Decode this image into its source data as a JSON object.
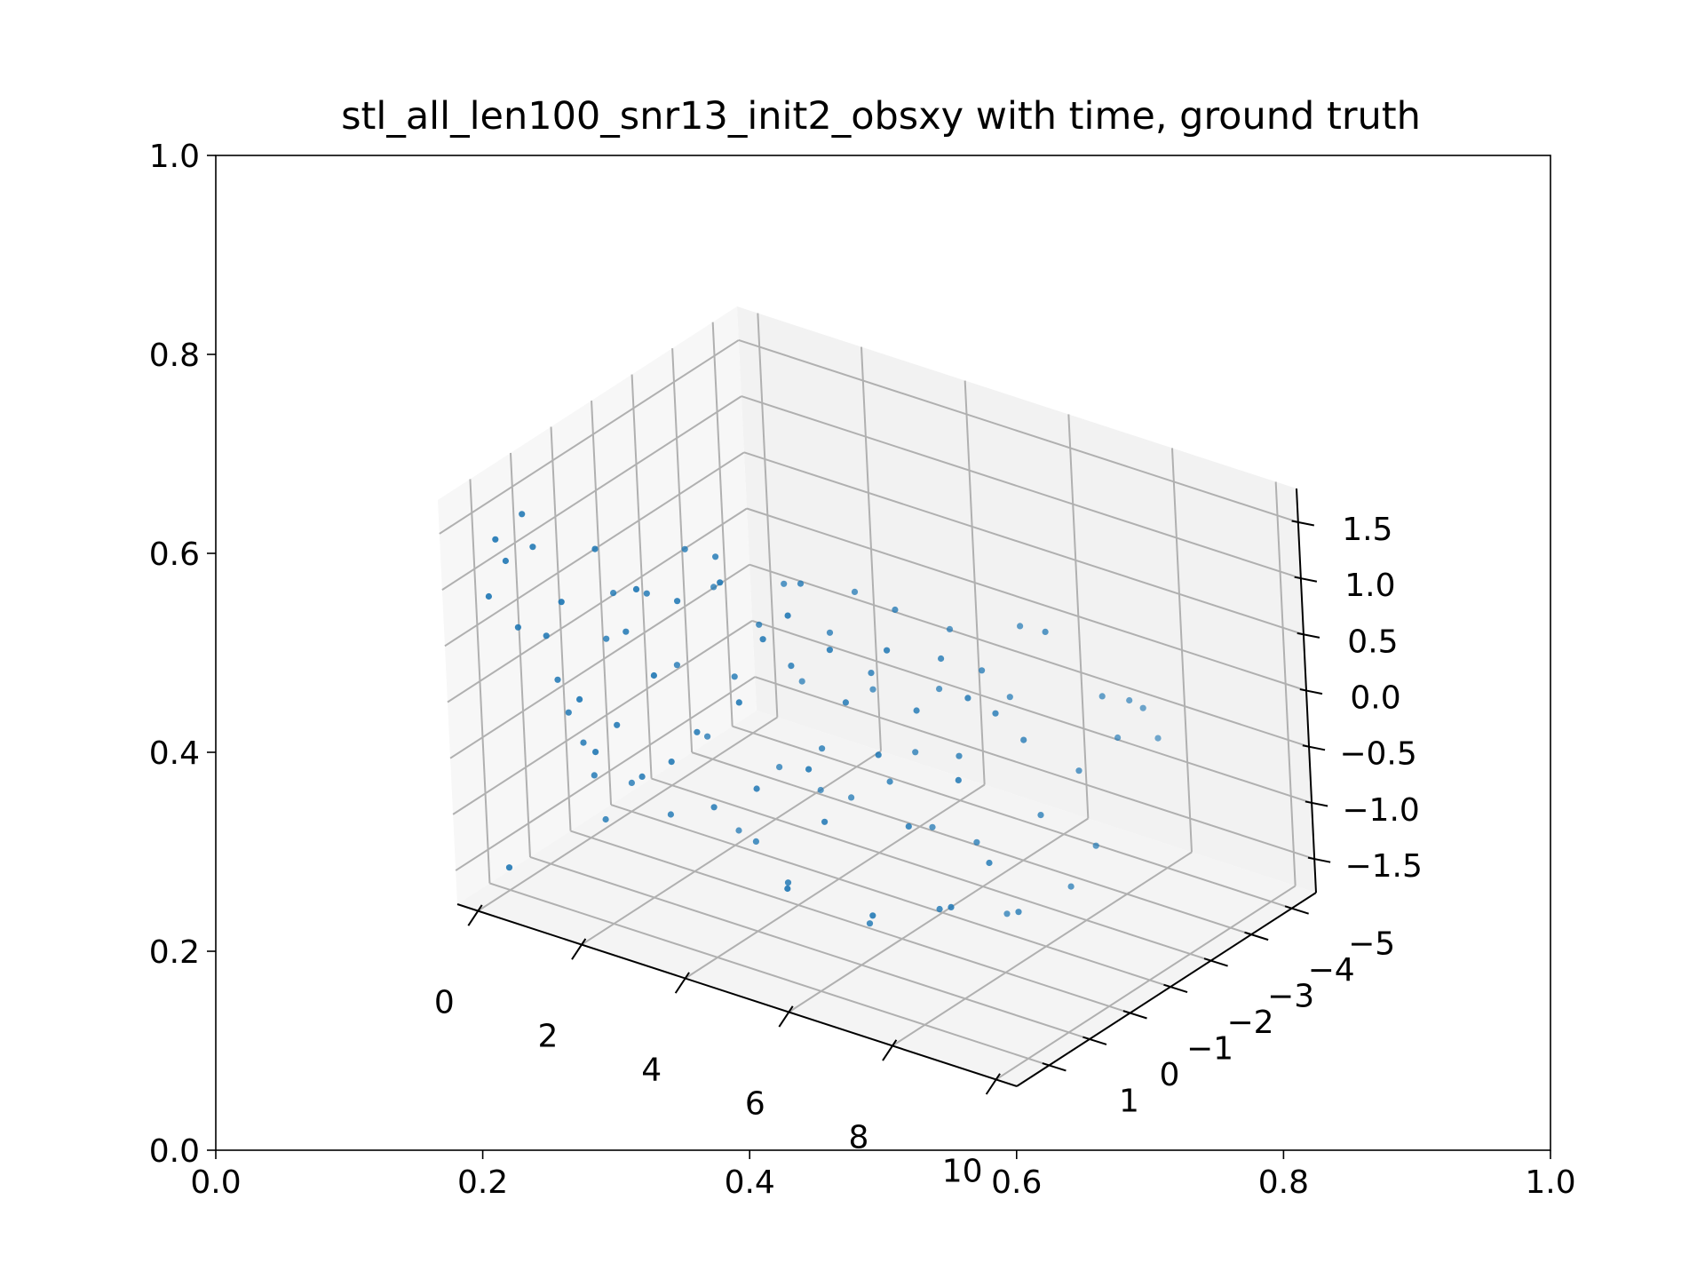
{
  "chart_data": {
    "type": "scatter",
    "title": "stl_all_len100_snr13_init2_obsxy with time, ground truth",
    "outer_axes": {
      "xlim": [
        0,
        1
      ],
      "ylim": [
        0,
        1
      ],
      "xticks": [
        "0.0",
        "0.2",
        "0.4",
        "0.6",
        "0.8",
        "1.0"
      ],
      "yticks": [
        "0.0",
        "0.2",
        "0.4",
        "0.6",
        "0.8",
        "1.0"
      ]
    },
    "axes3d": {
      "xlim": [
        -0.4,
        10.4
      ],
      "ylim": [
        -5.6,
        1.8
      ],
      "zlim": [
        -1.8,
        1.8
      ],
      "xticks": [
        0,
        2,
        4,
        6,
        8,
        10
      ],
      "xtick_labels": [
        "0",
        "2",
        "4",
        "6",
        "8",
        "10"
      ],
      "yticks": [
        -5,
        -4,
        -3,
        -2,
        -1,
        0,
        1
      ],
      "ytick_labels": [
        "−5",
        "−4",
        "−3",
        "−2",
        "−1",
        "0",
        "1"
      ],
      "zticks": [
        -1.5,
        -1.0,
        -0.5,
        0.0,
        0.5,
        1.0,
        1.5
      ],
      "ztick_labels": [
        "−1.5",
        "−1.0",
        "−0.5",
        "0.0",
        "0.5",
        "1.0",
        "1.5"
      ],
      "grid": true
    },
    "marker_color": "#1f77b4",
    "points": [
      [
        0.0,
        1.0,
        -1.6
      ],
      [
        0.1,
        1.3,
        0.9
      ],
      [
        0.2,
        1.2,
        1.4
      ],
      [
        0.3,
        1.1,
        1.2
      ],
      [
        0.4,
        1.0,
        0.6
      ],
      [
        0.5,
        0.9,
        1.6
      ],
      [
        0.6,
        0.8,
        1.3
      ],
      [
        0.7,
        0.7,
        0.5
      ],
      [
        0.8,
        0.6,
        0.1
      ],
      [
        0.9,
        0.5,
        -0.2
      ],
      [
        1.0,
        0.3,
        -0.5
      ],
      [
        1.1,
        0.2,
        -0.8
      ],
      [
        1.2,
        0.1,
        -1.2
      ],
      [
        1.3,
        0.0,
        0.4
      ],
      [
        1.4,
        -0.1,
        0.8
      ],
      [
        1.5,
        -0.2,
        -0.9
      ],
      [
        1.6,
        1.4,
        1.1
      ],
      [
        1.7,
        1.2,
        0.2
      ],
      [
        1.8,
        1.0,
        -0.3
      ],
      [
        1.9,
        0.9,
        1.5
      ],
      [
        2.0,
        0.7,
        -0.1
      ],
      [
        2.1,
        0.5,
        0.7
      ],
      [
        2.2,
        0.4,
        -0.6
      ],
      [
        2.3,
        0.2,
        1.0
      ],
      [
        2.4,
        0.0,
        -1.0
      ],
      [
        2.5,
        -0.2,
        0.3
      ],
      [
        2.6,
        -0.4,
        1.3
      ],
      [
        2.7,
        -0.6,
        -0.4
      ],
      [
        2.8,
        -0.8,
        0.9
      ],
      [
        2.9,
        -1.0,
        -1.3
      ],
      [
        3.0,
        1.3,
        1.4
      ],
      [
        3.1,
        1.1,
        0.6
      ],
      [
        3.2,
        0.9,
        -0.2
      ],
      [
        3.3,
        0.7,
        1.2
      ],
      [
        3.4,
        0.5,
        0.0
      ],
      [
        3.5,
        0.3,
        -0.7
      ],
      [
        3.6,
        0.1,
        1.5
      ],
      [
        3.7,
        -0.1,
        0.4
      ],
      [
        3.8,
        -0.3,
        -1.1
      ],
      [
        3.9,
        -0.5,
        0.8
      ],
      [
        4.0,
        -0.7,
        -0.5
      ],
      [
        4.1,
        -0.9,
        1.1
      ],
      [
        4.2,
        -1.1,
        0.2
      ],
      [
        4.3,
        -1.3,
        -0.8
      ],
      [
        4.4,
        1.0,
        1.6
      ],
      [
        4.5,
        0.8,
        0.5
      ],
      [
        4.6,
        0.6,
        -0.3
      ],
      [
        4.7,
        0.4,
        1.0
      ],
      [
        4.8,
        0.2,
        -1.2
      ],
      [
        4.9,
        0.0,
        0.7
      ],
      [
        5.0,
        -0.2,
        1.4
      ],
      [
        5.1,
        -0.4,
        -0.1
      ],
      [
        5.2,
        -0.6,
        0.9
      ],
      [
        5.3,
        -0.8,
        -0.6
      ],
      [
        5.4,
        -1.0,
        1.2
      ],
      [
        5.5,
        -1.2,
        0.3
      ],
      [
        5.6,
        1.2,
        -0.9
      ],
      [
        5.7,
        1.0,
        1.5
      ],
      [
        5.8,
        0.8,
        0.1
      ],
      [
        5.9,
        0.6,
        -0.4
      ],
      [
        6.0,
        0.4,
        1.1
      ],
      [
        6.1,
        0.2,
        0.6
      ],
      [
        6.2,
        0.0,
        -1.4
      ],
      [
        6.3,
        -0.2,
        0.8
      ],
      [
        6.4,
        -0.4,
        -0.2
      ],
      [
        6.5,
        -0.6,
        1.3
      ],
      [
        6.6,
        -0.8,
        0.0
      ],
      [
        6.7,
        -1.0,
        -0.7
      ],
      [
        6.8,
        -1.2,
        0.5
      ],
      [
        6.9,
        -1.4,
        1.0
      ],
      [
        7.0,
        0.9,
        -1.0
      ],
      [
        7.1,
        0.7,
        0.4
      ],
      [
        7.2,
        0.5,
        1.3
      ],
      [
        7.3,
        0.3,
        -0.3
      ],
      [
        7.4,
        0.1,
        0.7
      ],
      [
        7.5,
        -0.1,
        -1.1
      ],
      [
        7.6,
        -0.3,
        1.1
      ],
      [
        7.7,
        -0.5,
        0.2
      ],
      [
        7.8,
        -0.7,
        -0.6
      ],
      [
        7.9,
        -0.9,
        0.9
      ],
      [
        8.0,
        -1.1,
        -1.3
      ],
      [
        8.1,
        -1.3,
        0.6
      ],
      [
        8.2,
        -1.5,
        1.2
      ],
      [
        8.3,
        0.6,
        -0.8
      ],
      [
        8.4,
        0.4,
        0.3
      ],
      [
        8.5,
        0.2,
        1.0
      ],
      [
        8.6,
        0.0,
        -0.5
      ],
      [
        8.7,
        -0.2,
        0.8
      ],
      [
        8.8,
        -0.4,
        -1.0
      ],
      [
        8.9,
        -0.6,
        0.5
      ],
      [
        9.0,
        -0.8,
        -0.2
      ],
      [
        9.1,
        -1.0,
        1.4
      ],
      [
        9.2,
        -1.2,
        -0.9
      ],
      [
        9.3,
        -1.4,
        0.1
      ],
      [
        9.4,
        -1.6,
        -0.6
      ],
      [
        9.5,
        -1.8,
        0.7
      ],
      [
        9.6,
        -2.0,
        0.3
      ],
      [
        9.7,
        -2.2,
        0.6
      ],
      [
        9.8,
        -2.4,
        0.5
      ],
      [
        9.9,
        -2.6,
        0.2
      ]
    ]
  }
}
